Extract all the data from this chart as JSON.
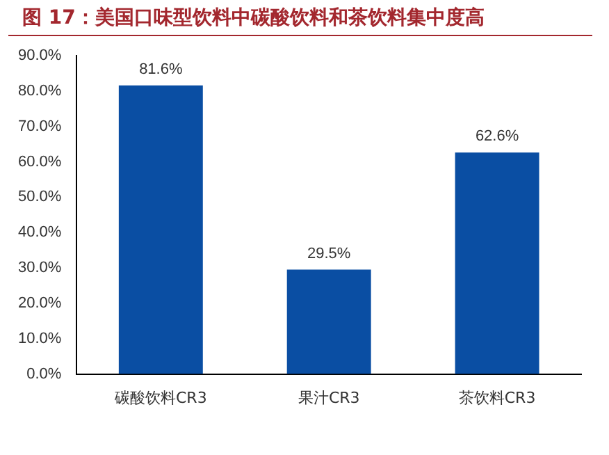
{
  "chart_data": {
    "type": "bar",
    "title": "图 17：美国口味型饮料中碳酸饮料和茶饮料集中度高",
    "categories": [
      "碳酸饮料CR3",
      "果汁CR3",
      "茶饮料CR3"
    ],
    "values": [
      81.6,
      29.5,
      62.6
    ],
    "color": "#0a4ea3",
    "value_labels": [
      "81.6%",
      "29.5%",
      "62.6%"
    ],
    "ylim": [
      0,
      90
    ],
    "yticks": [
      {
        "value": 0,
        "label": "0.0%"
      },
      {
        "value": 10,
        "label": "10.0%"
      },
      {
        "value": 20,
        "label": "20.0%"
      },
      {
        "value": 30,
        "label": "30.0%"
      },
      {
        "value": 40,
        "label": "40.0%"
      },
      {
        "value": 50,
        "label": "50.0%"
      },
      {
        "value": 60,
        "label": "60.0%"
      },
      {
        "value": 70,
        "label": "70.0%"
      },
      {
        "value": 80,
        "label": "80.0%"
      },
      {
        "value": 90,
        "label": "90.0%"
      }
    ],
    "grid": false,
    "legend": false
  }
}
